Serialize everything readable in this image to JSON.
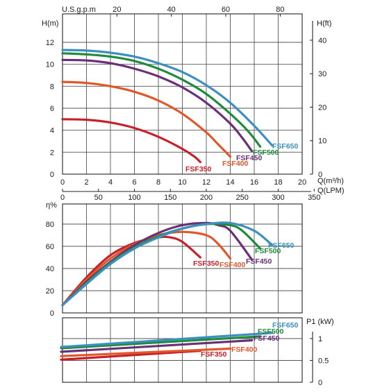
{
  "chart_data": [
    {
      "type": "line",
      "title": "",
      "xlabel": "Q(m³/h)",
      "xlabel_secondary_bottom": "Q(LPM)",
      "xlabel_secondary_top": "U.S.g.p.m",
      "ylabel": "H(m)",
      "ylabel_secondary": "H(ft)",
      "xlim": [
        0,
        20
      ],
      "ylim": [
        0,
        13
      ],
      "x_ticks": [
        "0",
        "2",
        "4",
        "6",
        "8",
        "10",
        "12",
        "14",
        "16",
        "18",
        "20"
      ],
      "y_ticks": [
        "0",
        "2",
        "4",
        "6",
        "8",
        "10",
        "12"
      ],
      "lpm_ticks": [
        "0",
        "50",
        "100",
        "150",
        "200",
        "250",
        "300",
        "350"
      ],
      "usgpm_ticks": [
        "20",
        "40",
        "60",
        "80"
      ],
      "ft_ticks": [
        "0",
        "10",
        "20",
        "30",
        "40"
      ],
      "grid": true,
      "series": [
        {
          "name": "FSF350",
          "color": "#c8202a",
          "x": [
            0,
            2,
            4,
            6,
            8,
            10,
            11,
            11.5
          ],
          "y": [
            5.0,
            4.95,
            4.7,
            4.2,
            3.4,
            2.3,
            1.6,
            1.1
          ]
        },
        {
          "name": "FSF400",
          "color": "#e0582a",
          "x": [
            0,
            2,
            4,
            6,
            8,
            10,
            12,
            13,
            14
          ],
          "y": [
            8.4,
            8.3,
            8.0,
            7.5,
            6.7,
            5.5,
            3.8,
            2.7,
            1.6
          ]
        },
        {
          "name": "FSF450",
          "color": "#6a2f78",
          "x": [
            0,
            2,
            4,
            6,
            8,
            10,
            12,
            14,
            15,
            15.8
          ],
          "y": [
            10.4,
            10.35,
            10.1,
            9.6,
            8.9,
            7.9,
            6.5,
            4.6,
            3.3,
            2.1
          ]
        },
        {
          "name": "FSF500",
          "color": "#1f8b3b",
          "x": [
            0,
            2,
            4,
            6,
            8,
            10,
            12,
            14,
            15.5,
            16.5
          ],
          "y": [
            11.0,
            10.9,
            10.7,
            10.3,
            9.6,
            8.6,
            7.3,
            5.5,
            3.9,
            2.5
          ]
        },
        {
          "name": "FSF650",
          "color": "#3c8fbf",
          "x": [
            0,
            2,
            4,
            6,
            8,
            10,
            12,
            14,
            16,
            17.5
          ],
          "y": [
            11.3,
            11.25,
            11.05,
            10.7,
            10.1,
            9.3,
            8.1,
            6.5,
            4.4,
            2.6
          ]
        }
      ]
    },
    {
      "type": "line",
      "title": "",
      "ylabel": "η%",
      "xlim": [
        0,
        20
      ],
      "ylim": [
        0,
        90
      ],
      "y_ticks": [
        "0",
        "20",
        "40",
        "60",
        "80"
      ],
      "grid": true,
      "series": [
        {
          "name": "FSF350",
          "color": "#c8202a",
          "x": [
            0,
            2,
            4,
            6,
            8,
            9,
            10,
            11.5
          ],
          "y": [
            7,
            32,
            52,
            63,
            68,
            68,
            64,
            50
          ]
        },
        {
          "name": "FSF400",
          "color": "#e0582a",
          "x": [
            0,
            2,
            4,
            6,
            8,
            10,
            12,
            13,
            14
          ],
          "y": [
            7,
            30,
            49,
            62,
            70,
            73,
            70,
            62,
            49
          ]
        },
        {
          "name": "FSF450",
          "color": "#6a2f78",
          "x": [
            0,
            2,
            4,
            6,
            8,
            10,
            12,
            13,
            14,
            15.8
          ],
          "y": [
            7,
            28,
            46,
            61,
            72,
            79,
            81,
            79,
            74,
            48
          ]
        },
        {
          "name": "FSF500",
          "color": "#1f8b3b",
          "x": [
            0,
            2,
            4,
            6,
            8,
            10,
            12,
            14,
            15,
            16.5
          ],
          "y": [
            7,
            27,
            45,
            59,
            69,
            76,
            80,
            79,
            74,
            58
          ]
        },
        {
          "name": "FSF650",
          "color": "#3c8fbf",
          "x": [
            0,
            2,
            4,
            6,
            8,
            10,
            12,
            14,
            16,
            17.5
          ],
          "y": [
            7,
            26,
            44,
            58,
            68,
            76,
            80,
            81,
            74,
            61
          ]
        }
      ]
    },
    {
      "type": "line",
      "title": "",
      "ylabel": "P1 (kW)",
      "xlim": [
        0,
        20
      ],
      "ylim": [
        0,
        1.2
      ],
      "y_ticks": [
        "0",
        "0.5",
        "1"
      ],
      "grid": true,
      "series": [
        {
          "name": "FSF350",
          "color": "#c8202a",
          "x": [
            0,
            11.5
          ],
          "y": [
            0.52,
            0.72
          ]
        },
        {
          "name": "FSF400",
          "color": "#e0582a",
          "x": [
            0,
            14
          ],
          "y": [
            0.6,
            0.77
          ]
        },
        {
          "name": "FSF450",
          "color": "#6a2f78",
          "x": [
            0,
            15.8
          ],
          "y": [
            0.7,
            0.96
          ]
        },
        {
          "name": "FSF500",
          "color": "#1f8b3b",
          "x": [
            0,
            16.5
          ],
          "y": [
            0.78,
            1.05
          ]
        },
        {
          "name": "FSF650",
          "color": "#3c8fbf",
          "x": [
            0,
            17.5
          ],
          "y": [
            0.81,
            1.13
          ]
        }
      ]
    }
  ]
}
